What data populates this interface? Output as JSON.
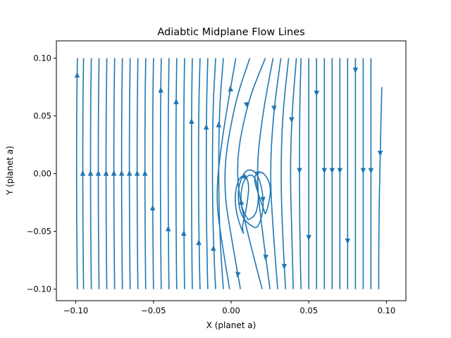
{
  "chart_data": {
    "type": "streamplot",
    "title": "Adiabtic Midplane Flow Lines",
    "xlabel": "X (planet a)",
    "ylabel": "Y (planet a)",
    "xlim": [
      -0.1125,
      0.1125
    ],
    "ylim": [
      -0.11,
      0.115
    ],
    "xticks": [
      -0.1,
      -0.05,
      0.0,
      0.05,
      0.1
    ],
    "xtick_labels": [
      "−0.10",
      "−0.05",
      "0.00",
      "0.05",
      "0.10"
    ],
    "yticks": [
      -0.1,
      -0.05,
      0.0,
      0.05,
      0.1
    ],
    "ytick_labels": [
      "−0.10",
      "−0.05",
      "0.00",
      "0.05",
      "0.10"
    ],
    "grid": false,
    "line_color": "#1f77b4",
    "streamlines": [
      {
        "x": [
          -0.099,
          -0.0995,
          -0.0995,
          -0.099
        ],
        "y": [
          -0.1,
          -0.05,
          0.05,
          0.1
        ],
        "arrow": 0.085
      },
      {
        "x": [
          -0.095,
          -0.0955,
          -0.0955,
          -0.095
        ],
        "y": [
          -0.1,
          -0.05,
          0.05,
          0.1
        ],
        "arrow": 0.0
      },
      {
        "x": [
          -0.09,
          -0.0905,
          -0.0905,
          -0.09
        ],
        "y": [
          -0.1,
          -0.05,
          0.05,
          0.1
        ],
        "arrow": 0.0
      },
      {
        "x": [
          -0.085,
          -0.0855,
          -0.0855,
          -0.085
        ],
        "y": [
          -0.1,
          -0.05,
          0.05,
          0.1
        ],
        "arrow": 0.0
      },
      {
        "x": [
          -0.08,
          -0.0805,
          -0.0805,
          -0.08
        ],
        "y": [
          -0.1,
          -0.05,
          0.05,
          0.1
        ],
        "arrow": 0.0
      },
      {
        "x": [
          -0.075,
          -0.0755,
          -0.0755,
          -0.075
        ],
        "y": [
          -0.1,
          -0.05,
          0.05,
          0.1
        ],
        "arrow": 0.0
      },
      {
        "x": [
          -0.07,
          -0.0705,
          -0.0705,
          -0.07
        ],
        "y": [
          -0.1,
          -0.05,
          0.05,
          0.1
        ],
        "arrow": 0.0
      },
      {
        "x": [
          -0.065,
          -0.0655,
          -0.0655,
          -0.065
        ],
        "y": [
          -0.1,
          -0.05,
          0.05,
          0.1
        ],
        "arrow": 0.0
      },
      {
        "x": [
          -0.06,
          -0.0605,
          -0.0605,
          -0.06
        ],
        "y": [
          -0.1,
          -0.05,
          0.05,
          0.1
        ],
        "arrow": 0.0
      },
      {
        "x": [
          -0.055,
          -0.0555,
          -0.0555,
          -0.055
        ],
        "y": [
          -0.1,
          -0.05,
          0.05,
          0.1
        ],
        "arrow": 0.0
      },
      {
        "x": [
          -0.05,
          -0.0505,
          -0.0505,
          -0.05
        ],
        "y": [
          -0.1,
          -0.05,
          0.05,
          0.1
        ],
        "arrow": -0.03
      },
      {
        "x": [
          -0.045,
          -0.0455,
          -0.0455,
          -0.045
        ],
        "y": [
          -0.1,
          -0.05,
          0.05,
          0.1
        ],
        "arrow": 0.072
      },
      {
        "x": [
          -0.04,
          -0.0405,
          -0.0405,
          -0.04
        ],
        "y": [
          -0.1,
          -0.05,
          0.05,
          0.1
        ],
        "arrow": -0.048
      },
      {
        "x": [
          -0.035,
          -0.0355,
          -0.0355,
          -0.035
        ],
        "y": [
          -0.1,
          -0.05,
          0.05,
          0.1
        ],
        "arrow": 0.062
      },
      {
        "x": [
          -0.03,
          -0.0305,
          -0.0305,
          -0.03
        ],
        "y": [
          -0.1,
          -0.05,
          0.05,
          0.1
        ],
        "arrow": -0.052
      },
      {
        "x": [
          -0.025,
          -0.0255,
          -0.0255,
          -0.025
        ],
        "y": [
          -0.1,
          -0.05,
          0.05,
          0.1
        ],
        "arrow": 0.045
      },
      {
        "x": [
          -0.02,
          -0.021,
          -0.021,
          -0.02
        ],
        "y": [
          -0.1,
          -0.05,
          0.05,
          0.1
        ],
        "arrow": -0.06
      },
      {
        "x": [
          -0.015,
          -0.016,
          -0.016,
          -0.015
        ],
        "y": [
          -0.1,
          -0.05,
          0.05,
          0.1
        ],
        "arrow": 0.04
      },
      {
        "x": [
          -0.01,
          -0.012,
          -0.012,
          -0.01
        ],
        "y": [
          -0.1,
          -0.05,
          0.05,
          0.1
        ],
        "arrow": -0.065
      },
      {
        "x": [
          -0.005,
          -0.008,
          -0.008,
          -0.005
        ],
        "y": [
          -0.1,
          -0.05,
          0.05,
          0.1
        ],
        "arrow": 0.042
      },
      {
        "x": [
          -0.001,
          -0.006,
          -0.01,
          -0.006,
          0.003
        ],
        "y": [
          -0.1,
          -0.06,
          -0.02,
          0.03,
          0.1
        ],
        "arrow": 0.073
      },
      {
        "x": [
          0.006,
          0.002,
          -0.006,
          0.002,
          0.012
        ],
        "y": [
          -0.1,
          -0.07,
          -0.005,
          0.06,
          0.1
        ],
        "arrow": -0.087
      },
      {
        "x": [
          0.02,
          0.012,
          0.002,
          0.01,
          0.022
        ],
        "y": [
          -0.1,
          -0.06,
          0.0,
          0.06,
          0.1
        ],
        "arrow": 0.06
      },
      {
        "x": [
          0.025,
          0.02,
          0.016,
          0.02,
          0.027
        ],
        "y": [
          -0.1,
          -0.05,
          0.0,
          0.05,
          0.1
        ],
        "arrow": -0.072
      },
      {
        "x": [
          0.03,
          0.027,
          0.025,
          0.027,
          0.032
        ],
        "y": [
          -0.1,
          -0.05,
          0.0,
          0.05,
          0.1
        ],
        "arrow": 0.057
      },
      {
        "x": [
          0.035,
          0.033,
          0.032,
          0.033,
          0.037
        ],
        "y": [
          -0.1,
          -0.05,
          0.0,
          0.05,
          0.1
        ],
        "arrow": -0.08
      },
      {
        "x": [
          0.04,
          0.039,
          0.038,
          0.039,
          0.042
        ],
        "y": [
          -0.1,
          -0.05,
          0.0,
          0.05,
          0.1
        ],
        "arrow": 0.047
      },
      {
        "x": [
          0.045,
          0.044,
          0.044,
          0.045
        ],
        "y": [
          -0.1,
          -0.05,
          0.05,
          0.1
        ],
        "arrow": 0.003
      },
      {
        "x": [
          0.05,
          0.05,
          0.05,
          0.05
        ],
        "y": [
          -0.1,
          -0.05,
          0.05,
          0.1
        ],
        "arrow": -0.055
      },
      {
        "x": [
          0.055,
          0.055,
          0.055,
          0.055
        ],
        "y": [
          -0.1,
          -0.05,
          0.05,
          0.1
        ],
        "arrow": 0.07
      },
      {
        "x": [
          0.06,
          0.06,
          0.06,
          0.06
        ],
        "y": [
          -0.1,
          -0.05,
          0.05,
          0.1
        ],
        "arrow": 0.003
      },
      {
        "x": [
          0.065,
          0.065,
          0.065,
          0.065
        ],
        "y": [
          -0.1,
          -0.05,
          0.05,
          0.1
        ],
        "arrow": 0.003
      },
      {
        "x": [
          0.07,
          0.07,
          0.07,
          0.07
        ],
        "y": [
          -0.1,
          -0.05,
          0.05,
          0.1
        ],
        "arrow": 0.003
      },
      {
        "x": [
          0.075,
          0.075,
          0.075,
          0.075
        ],
        "y": [
          -0.1,
          -0.05,
          0.05,
          0.1
        ],
        "arrow": -0.058
      },
      {
        "x": [
          0.08,
          0.08,
          0.08,
          0.08
        ],
        "y": [
          -0.1,
          -0.05,
          0.05,
          0.1
        ],
        "arrow": 0.09
      },
      {
        "x": [
          0.085,
          0.085,
          0.085,
          0.085
        ],
        "y": [
          -0.1,
          -0.05,
          0.05,
          0.1
        ],
        "arrow": 0.003
      },
      {
        "x": [
          0.09,
          0.09,
          0.09,
          0.09
        ],
        "y": [
          -0.1,
          -0.05,
          0.05,
          0.1
        ],
        "arrow": 0.003
      },
      {
        "x": [
          0.095,
          0.095,
          0.096,
          0.097
        ],
        "y": [
          -0.1,
          -0.05,
          0.02,
          0.075
        ],
        "arrow": 0.018
      }
    ],
    "loops": [
      {
        "x": [
          0.013,
          0.007,
          0.004,
          0.006,
          0.01,
          0.016,
          0.02,
          0.021,
          0.017,
          0.013
        ],
        "y": [
          -0.045,
          -0.04,
          -0.02,
          -0.005,
          0.004,
          0.002,
          -0.012,
          -0.032,
          -0.048,
          -0.045
        ],
        "arrow": 0.7
      },
      {
        "x": [
          0.011,
          0.007,
          0.006,
          0.008,
          0.012,
          0.016,
          0.018,
          0.016,
          0.011
        ],
        "y": [
          -0.04,
          -0.032,
          -0.018,
          -0.006,
          0.0,
          -0.004,
          -0.02,
          -0.036,
          -0.04
        ],
        "arrow": 0.2
      },
      {
        "x": [
          0.008,
          0.004,
          0.002,
          0.006,
          0.012,
          0.01,
          0.007,
          0.008
        ],
        "y": [
          -0.052,
          -0.04,
          -0.018,
          0.0,
          -0.006,
          -0.03,
          -0.046,
          -0.052
        ],
        "arrow": 0.5
      },
      {
        "x": [
          0.022,
          0.018,
          0.014,
          0.02,
          0.026,
          0.024,
          0.022
        ],
        "y": [
          -0.035,
          -0.02,
          -0.002,
          0.003,
          -0.01,
          -0.028,
          -0.035
        ],
        "arrow": 0.4
      }
    ]
  }
}
